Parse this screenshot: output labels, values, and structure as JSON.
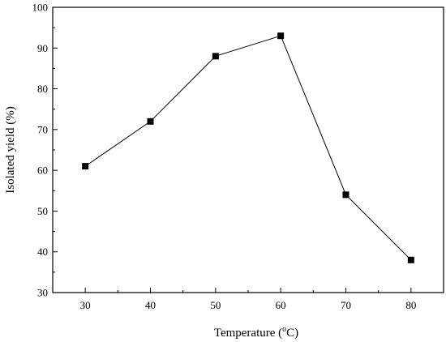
{
  "chart_data": {
    "type": "line",
    "xlabel": "Temperature (",
    "xlabel_sup": "o",
    "xlabel_unit": "C)",
    "ylabel": "Isolated yield (%)",
    "xlim": [
      25,
      85
    ],
    "ylim": [
      30,
      100
    ],
    "x_ticks": [
      30,
      40,
      50,
      60,
      70,
      80
    ],
    "y_ticks": [
      30,
      40,
      50,
      60,
      70,
      80,
      90,
      100
    ],
    "series": [
      {
        "x": [
          30,
          40,
          50,
          60,
          70,
          80
        ],
        "y": [
          61,
          72,
          88,
          93,
          54,
          38
        ],
        "marker": "square",
        "color": "#000000"
      }
    ],
    "grid": false,
    "legend": "none"
  }
}
